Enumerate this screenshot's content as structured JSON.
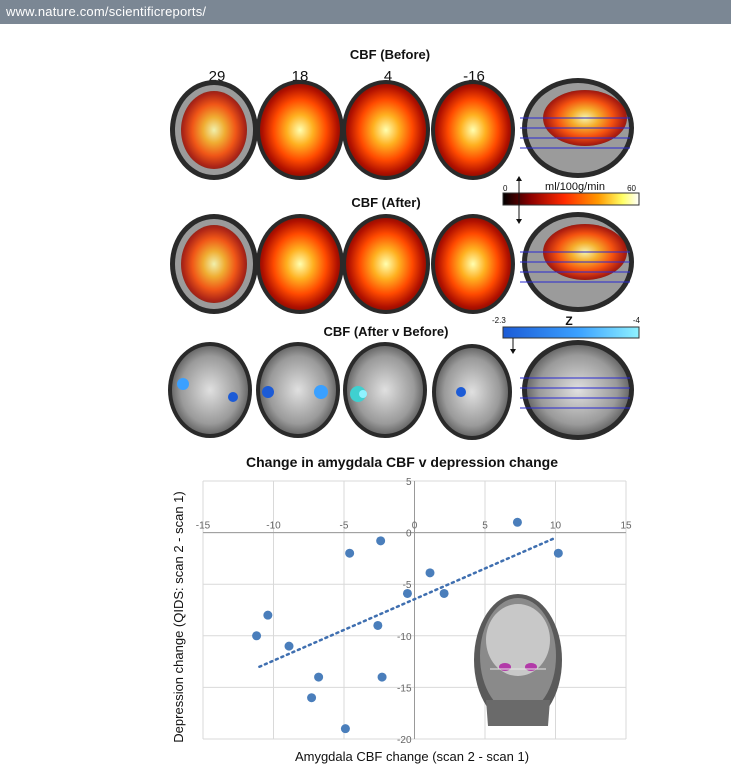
{
  "header": {
    "url": "www.nature.com/scientificreports/"
  },
  "panel_top": {
    "slice_labels": [
      "29",
      "18",
      "4",
      "-16"
    ],
    "titles": {
      "before": "CBF (Before)",
      "after": "CBF (After)",
      "diff": "CBF (After v Before)"
    },
    "colorbar_cbf": {
      "min": "0",
      "max": "60",
      "unit": "ml/100g/min",
      "colors": [
        "#000000",
        "#8b0000",
        "#ff2a00",
        "#ff9900",
        "#ffff66",
        "#ffffff"
      ]
    },
    "colorbar_z": {
      "min": "-2.3",
      "max": "-4",
      "unit": "Z",
      "colors": [
        "#1c5bd6",
        "#3aa0ff",
        "#8ff2ff"
      ]
    }
  },
  "chart_data": {
    "type": "scatter",
    "title": "Change in amygdala CBF v depression change",
    "xlabel": "Amygdala CBF change (scan 2 - scan 1)",
    "ylabel": "Depression change (QIDS: scan 2 - scan 1)",
    "xlim": [
      -15,
      15
    ],
    "ylim": [
      -20,
      5
    ],
    "xticks": [
      "-15",
      "-10",
      "-5",
      "0",
      "5",
      "10",
      "15"
    ],
    "yticks": [
      "5",
      "0",
      "-5",
      "-10",
      "-15",
      "-20"
    ],
    "grid": true,
    "trendline": {
      "x1": -11,
      "y1": -13,
      "x2": 10,
      "y2": -0.5,
      "style": "dotted"
    },
    "points": [
      {
        "x": 7.3,
        "y": 1
      },
      {
        "x": -2.4,
        "y": -0.8
      },
      {
        "x": 10.2,
        "y": -2
      },
      {
        "x": -4.6,
        "y": -2
      },
      {
        "x": 1.1,
        "y": -3.9
      },
      {
        "x": 2.1,
        "y": -5.9
      },
      {
        "x": -0.5,
        "y": -5.9
      },
      {
        "x": -10.4,
        "y": -8
      },
      {
        "x": -2.6,
        "y": -9
      },
      {
        "x": -11.2,
        "y": -10
      },
      {
        "x": -8.9,
        "y": -11
      },
      {
        "x": -6.8,
        "y": -14
      },
      {
        "x": -2.3,
        "y": -14
      },
      {
        "x": -7.3,
        "y": -16
      },
      {
        "x": -4.9,
        "y": -19
      }
    ],
    "marker_color": "#4a7ebb",
    "trend_color": "#3f6fb0"
  }
}
